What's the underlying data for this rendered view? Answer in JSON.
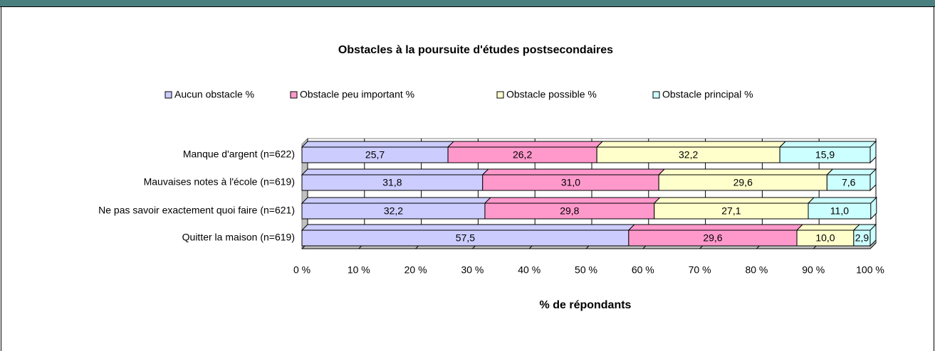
{
  "chart_data": {
    "type": "bar",
    "title": "Obstacles à la poursuite d'études postsecondaires",
    "x_label": "% de répondants",
    "categories": [
      "Manque d'argent (n=622)",
      "Mauvaises notes à l'école (n=619)",
      "Ne pas savoir exactement quoi faire (n=621)",
      "Quitter la maison (n=619)"
    ],
    "series": [
      {
        "name": "Aucun obstacle %",
        "color": "#ccccff",
        "values": [
          25.7,
          31.8,
          32.2,
          57.5
        ],
        "value_labels": [
          "25,7",
          "31,8",
          "32,2",
          "57,5"
        ]
      },
      {
        "name": "Obstacle peu important %",
        "color": "#ff99cc",
        "values": [
          26.2,
          31.0,
          29.8,
          29.6
        ],
        "value_labels": [
          "26,2",
          "31,0",
          "29,8",
          "29,6"
        ]
      },
      {
        "name": "Obstacle possible %",
        "color": "#ffffcc",
        "values": [
          32.2,
          29.6,
          27.1,
          10.0
        ],
        "value_labels": [
          "32,2",
          "29,6",
          "27,1",
          "10,0"
        ]
      },
      {
        "name": "Obstacle principal %",
        "color": "#ccffff",
        "values": [
          15.9,
          7.6,
          11.0,
          2.9
        ],
        "value_labels": [
          "15,9",
          "7,6",
          "11,0",
          "2,9"
        ]
      }
    ],
    "xlim": [
      0,
      100
    ],
    "xticks": [
      {
        "value": 0,
        "label": "0 %"
      },
      {
        "value": 10,
        "label": "10 %"
      },
      {
        "value": 20,
        "label": "20 %"
      },
      {
        "value": 30,
        "label": "30 %"
      },
      {
        "value": 40,
        "label": "40 %"
      },
      {
        "value": 50,
        "label": "50 %"
      },
      {
        "value": 60,
        "label": "60 %"
      },
      {
        "value": 70,
        "label": "70 %"
      },
      {
        "value": 80,
        "label": "80 %"
      },
      {
        "value": 90,
        "label": "90 %"
      },
      {
        "value": 100,
        "label": "100 %"
      }
    ],
    "grid": true
  }
}
